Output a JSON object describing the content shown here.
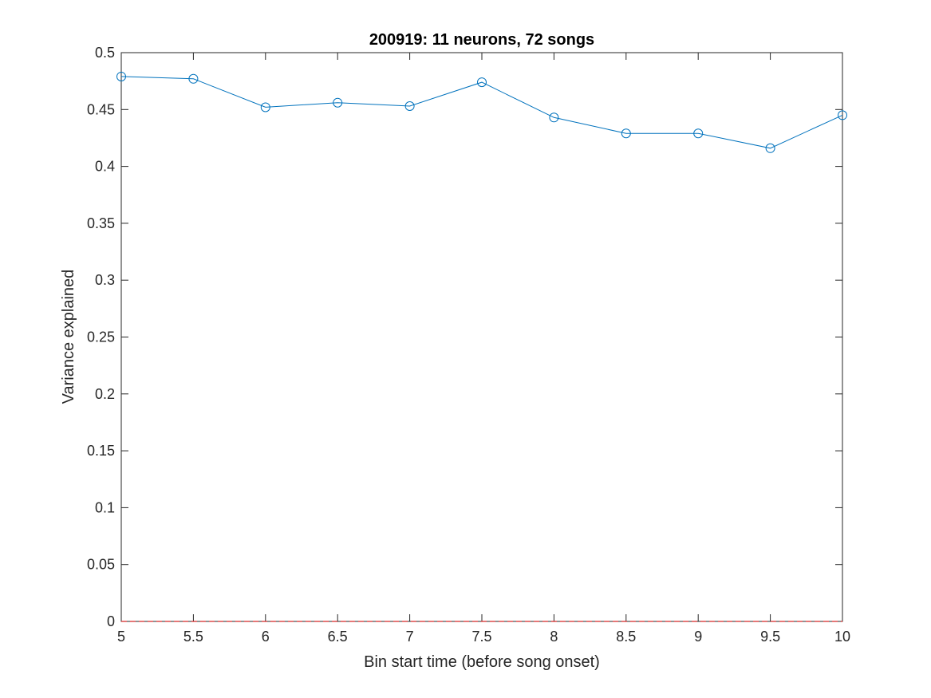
{
  "chart_data": {
    "type": "line",
    "title": "200919: 11 neurons, 72 songs",
    "xlabel": "Bin start time (before song onset)",
    "ylabel": "Variance explained",
    "xlim": [
      5,
      10
    ],
    "ylim": [
      0,
      0.5
    ],
    "x_ticks": [
      "5",
      "5.5",
      "6",
      "6.5",
      "7",
      "7.5",
      "8",
      "8.5",
      "9",
      "9.5",
      "10"
    ],
    "y_ticks": [
      "0",
      "0.05",
      "0.1",
      "0.15",
      "0.2",
      "0.25",
      "0.3",
      "0.35",
      "0.4",
      "0.45",
      "0.5"
    ],
    "grid": false,
    "series": [
      {
        "color": "#0072BD",
        "marker": "circle",
        "x": [
          5,
          5.5,
          6,
          6.5,
          7,
          7.5,
          8,
          8.5,
          9,
          9.5,
          10
        ],
        "y": [
          0.479,
          0.477,
          0.452,
          0.456,
          0.453,
          0.474,
          0.443,
          0.429,
          0.429,
          0.416,
          0.445
        ]
      }
    ],
    "reference_line": {
      "y": 0,
      "color": "#D62728",
      "style": "dashed"
    }
  }
}
